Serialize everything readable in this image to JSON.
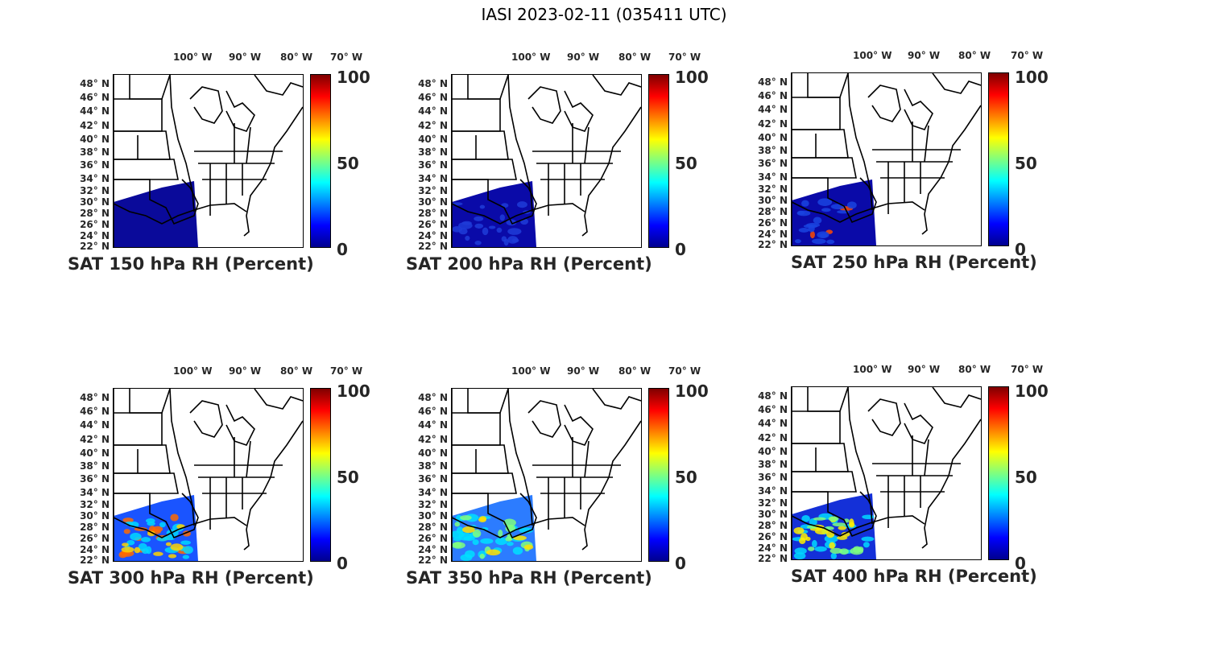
{
  "figure": {
    "title": "IASI 2023-02-11 (035411 UTC)"
  },
  "axes": {
    "lon_ticks": [
      "100° W",
      "90° W",
      "80° W",
      "70° W"
    ],
    "lat_ticks": [
      "48° N",
      "46° N",
      "44° N",
      "42° N",
      "40° N",
      "38° N",
      "36° N",
      "34° N",
      "32° N",
      "30° N",
      "28° N",
      "26° N",
      "24° N",
      "22° N"
    ]
  },
  "colorbar": {
    "min": "0",
    "mid": "50",
    "max": "100",
    "colormap": "jet"
  },
  "panels": [
    {
      "title": "SAT 150 hPa RH (Percent)",
      "level_hpa": 150,
      "rh_pattern": "mostly dry (deep blue)"
    },
    {
      "title": "SAT 200 hPa RH (Percent)",
      "level_hpa": 200,
      "rh_pattern": "mostly dry (deep blue)"
    },
    {
      "title": "SAT 250 hPa RH (Percent)",
      "level_hpa": 250,
      "rh_pattern": "dry with moist spot near Texas coast"
    },
    {
      "title": "SAT 300 hPa RH (Percent)",
      "level_hpa": 300,
      "rh_pattern": "moist band over western Gulf"
    },
    {
      "title": "SAT 350 hPa RH (Percent)",
      "level_hpa": 350,
      "rh_pattern": "mixed cyan/green over Gulf"
    },
    {
      "title": "SAT 400 hPa RH (Percent)",
      "level_hpa": 400,
      "rh_pattern": "cyan/yellow over southern Gulf"
    }
  ]
}
